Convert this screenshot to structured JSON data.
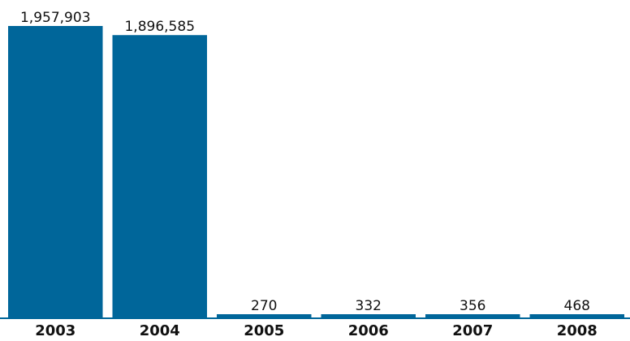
{
  "chart_data": {
    "type": "bar",
    "categories": [
      "2003",
      "2004",
      "2005",
      "2006",
      "2007",
      "2008"
    ],
    "values": [
      1957903,
      1896585,
      270,
      332,
      356,
      468
    ],
    "value_labels": [
      "1,957,903",
      "1,896,585",
      "270",
      "332",
      "356",
      "468"
    ],
    "title": "",
    "xlabel": "",
    "ylabel": "",
    "ylim": [
      0,
      1957903
    ],
    "grid": false,
    "legend": "none",
    "colors": {
      "bar": "#00669a",
      "baseline": "#00669a",
      "text": "#111111"
    }
  }
}
